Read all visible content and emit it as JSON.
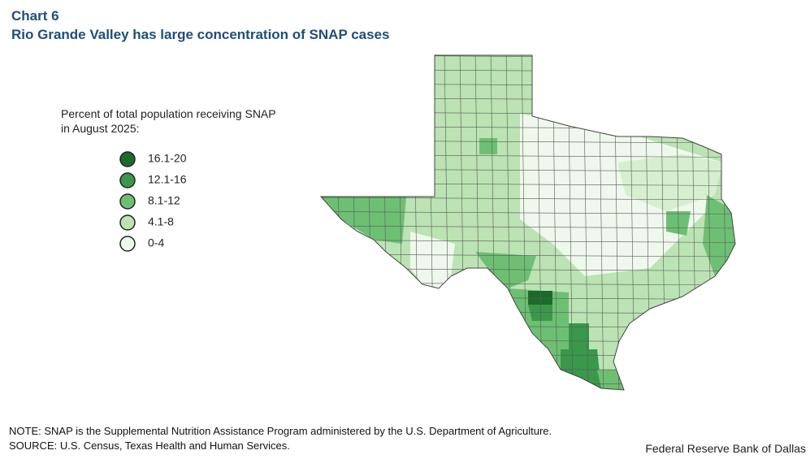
{
  "header": {
    "chart_label": "Chart 6",
    "title": "Rio Grande Valley has large concentration of SNAP cases"
  },
  "legend": {
    "title_lines": [
      "Percent of total population receiving SNAP",
      "in August 2025:"
    ],
    "items": [
      {
        "label": "16.1-20",
        "color": "#1b6b2b"
      },
      {
        "label": "12.1-16",
        "color": "#39984a"
      },
      {
        "label": "8.1-12",
        "color": "#6dc073"
      },
      {
        "label": "4.1-8",
        "color": "#bbe3b3"
      },
      {
        "label": "0-4",
        "color": "#eff8ec"
      }
    ]
  },
  "footer": {
    "note": "NOTE: SNAP is the Supplemental Nutrition Assistance Program administered by the U.S. Department of Agriculture.",
    "source": "SOURCE: U.S. Census, Texas Health and Human Services.",
    "credit": "Federal Reserve Bank of Dallas"
  }
}
